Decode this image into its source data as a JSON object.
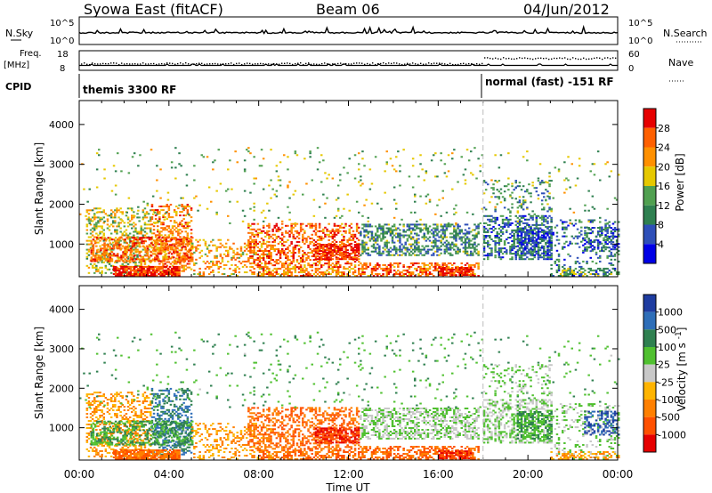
{
  "header": {
    "station": "Syowa East (fitACF)",
    "beam": "Beam 06",
    "date": "04/Jun/2012"
  },
  "panels": {
    "nsky": {
      "label": "N.Sky",
      "right_label": "N.Search",
      "left_ticks": [
        "10^5",
        "10^0"
      ],
      "right_ticks": [
        "10^5",
        "10^0"
      ]
    },
    "freq": {
      "label_line1": "Freq.",
      "label_line2": "[MHz]",
      "right_label": "Nave",
      "left_ticks": [
        "18",
        "8"
      ],
      "right_ticks": [
        "60",
        "0"
      ]
    },
    "cpid": {
      "label": "CPID",
      "modes": [
        {
          "text": "themis 3300 RF",
          "start": "00:00",
          "end": "18:00"
        },
        {
          "text": "normal (fast) -151 RF",
          "start": "18:00",
          "end": "24:00"
        }
      ]
    }
  },
  "chart_data": [
    {
      "type": "heatmap",
      "title": "",
      "xlabel": "Time UT",
      "ylabel": "Slant Range [km]",
      "x_ticks": [
        "00:00",
        "04:00",
        "08:00",
        "12:00",
        "16:00",
        "20:00",
        "00:00"
      ],
      "x_range_hours": [
        0,
        24
      ],
      "y_ticks": [
        1000,
        2000,
        3000,
        4000
      ],
      "ylim": [
        180,
        4600
      ],
      "colorbar": {
        "label": "Power [dB]",
        "ticks": [
          4,
          8,
          12,
          16,
          20,
          24,
          28
        ],
        "range": [
          0,
          30
        ],
        "colors": [
          "#0000e6",
          "#2e4fb8",
          "#2f8050",
          "#50a050",
          "#e6c800",
          "#ff9000",
          "#ff6000",
          "#e60000"
        ]
      }
    },
    {
      "type": "heatmap",
      "title": "",
      "xlabel": "Time UT",
      "ylabel": "Slant Range [km]",
      "x_ticks": [
        "00:00",
        "04:00",
        "08:00",
        "12:00",
        "16:00",
        "20:00",
        "00:00"
      ],
      "x_range_hours": [
        0,
        24
      ],
      "y_ticks": [
        1000,
        2000,
        3000,
        4000
      ],
      "ylim": [
        180,
        4600
      ],
      "colorbar": {
        "label": "Velocity [m s^-1]",
        "ticks": [
          1000,
          500,
          100,
          25,
          -25,
          -100,
          -500,
          -1000
        ],
        "colors": [
          "#1e3ca0",
          "#2e6eb8",
          "#2f8050",
          "#50c030",
          "#c8c8c8",
          "#ffb400",
          "#ff8000",
          "#ff5000",
          "#e60000"
        ]
      }
    }
  ],
  "scatter_regions": [
    {
      "t0": 0.3,
      "t1": 3.2,
      "r0": 250,
      "r1": 1900,
      "density": 0.35,
      "pwr": 16,
      "vel": -100
    },
    {
      "t0": 3.2,
      "t1": 5.0,
      "r0": 300,
      "r1": 2000,
      "density": 0.4,
      "pwr": 22,
      "vel": 500
    },
    {
      "t0": 1.5,
      "t1": 4.5,
      "r0": 180,
      "r1": 420,
      "density": 0.85,
      "pwr": 28,
      "vel": -500
    },
    {
      "t0": 0.5,
      "t1": 5.0,
      "r0": 550,
      "r1": 1150,
      "density": 0.45,
      "pwr": 24,
      "vel": 100
    },
    {
      "t0": 5.0,
      "t1": 8.5,
      "r0": 180,
      "r1": 1100,
      "density": 0.25,
      "pwr": 20,
      "vel": -100
    },
    {
      "t0": 7.5,
      "t1": 12.5,
      "r0": 400,
      "r1": 1500,
      "density": 0.4,
      "pwr": 24,
      "vel": -500
    },
    {
      "t0": 10.5,
      "t1": 12.5,
      "r0": 600,
      "r1": 1000,
      "density": 0.75,
      "pwr": 28,
      "vel": -1000
    },
    {
      "t0": 8.0,
      "t1": 12.5,
      "r0": 180,
      "r1": 400,
      "density": 0.5,
      "pwr": 22,
      "vel": -500
    },
    {
      "t0": 12.5,
      "t1": 17.8,
      "r0": 700,
      "r1": 1500,
      "density": 0.45,
      "pwr": 10,
      "vel": 25
    },
    {
      "t0": 12.5,
      "t1": 17.8,
      "r0": 180,
      "r1": 500,
      "density": 0.5,
      "pwr": 24,
      "vel": -500
    },
    {
      "t0": 16.0,
      "t1": 17.5,
      "r0": 200,
      "r1": 400,
      "density": 0.8,
      "pwr": 28,
      "vel": -1000
    },
    {
      "t0": 18.0,
      "t1": 21.0,
      "r0": 600,
      "r1": 1700,
      "density": 0.45,
      "pwr": 8,
      "vel": 25
    },
    {
      "t0": 19.5,
      "t1": 21.0,
      "r0": 700,
      "r1": 1400,
      "density": 0.6,
      "pwr": 6,
      "vel": 100
    },
    {
      "t0": 21.0,
      "t1": 24.0,
      "r0": 180,
      "r1": 1600,
      "density": 0.2,
      "pwr": 8,
      "vel": 25
    },
    {
      "t0": 22.5,
      "t1": 24.0,
      "r0": 800,
      "r1": 1400,
      "density": 0.35,
      "pwr": 6,
      "vel": 1000
    },
    {
      "t0": 21.0,
      "t1": 24.0,
      "r0": 180,
      "r1": 400,
      "density": 0.4,
      "pwr": 12,
      "vel": -100
    },
    {
      "t0": 0.0,
      "t1": 24.0,
      "r0": 1500,
      "r1": 3400,
      "density": 0.03,
      "pwr": 14,
      "vel": 100
    },
    {
      "t0": 18.0,
      "t1": 21.0,
      "r0": 1800,
      "r1": 2600,
      "density": 0.18,
      "pwr": 10,
      "vel": 25
    }
  ]
}
